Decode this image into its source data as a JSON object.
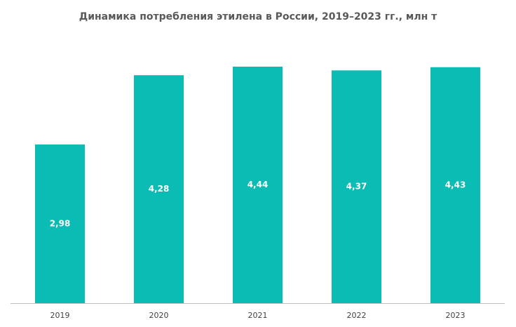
{
  "chart_data": {
    "type": "bar",
    "title": "Динамика потребления этилена в России, 2019–2023 гг., млн т",
    "categories": [
      "2019",
      "2020",
      "2021",
      "2022",
      "2023"
    ],
    "values": [
      2.98,
      4.28,
      4.44,
      4.37,
      4.43
    ],
    "value_labels": [
      "2,98",
      "4,28",
      "4,44",
      "4,37",
      "4,43"
    ],
    "color": "#0bbcb4"
  }
}
